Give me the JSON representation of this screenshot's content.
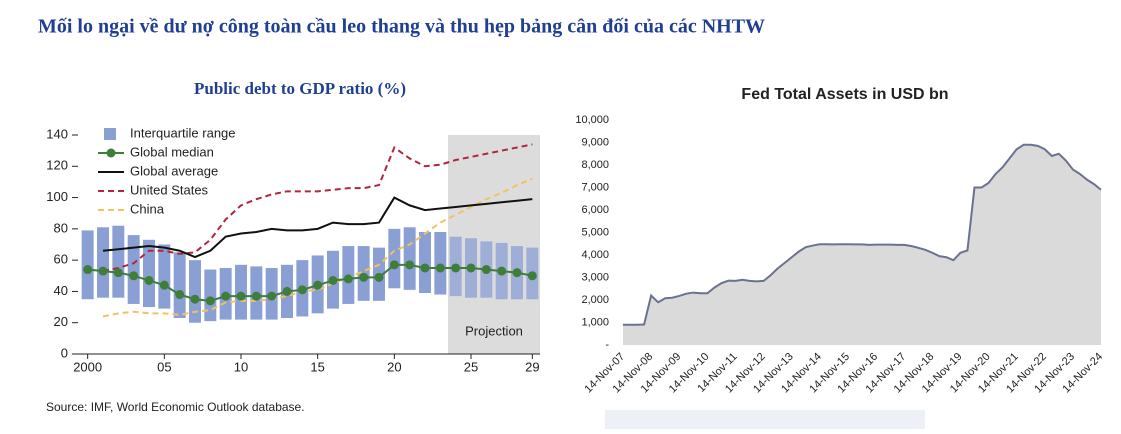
{
  "title": "Mối lo ngại về dư nợ công toàn cầu leo thang và thu hẹp bảng cân đối của các NHTW",
  "chart_data": [
    {
      "type": "line",
      "title": "Public debt to GDP ratio (%)",
      "source": "Source: IMF, World Economic Outlook database.",
      "x": [
        2000,
        2001,
        2002,
        2003,
        2004,
        2005,
        2006,
        2007,
        2008,
        2009,
        2010,
        2011,
        2012,
        2013,
        2014,
        2015,
        2016,
        2017,
        2018,
        2019,
        2020,
        2021,
        2022,
        2023,
        2024,
        2025,
        2026,
        2027,
        2028,
        2029
      ],
      "xlim": [
        1999.5,
        2029.5
      ],
      "xticks": [
        {
          "value": 2000,
          "label": "2000"
        },
        {
          "value": 2005,
          "label": "05"
        },
        {
          "value": 2010,
          "label": "10"
        },
        {
          "value": 2015,
          "label": "15"
        },
        {
          "value": 2020,
          "label": "20"
        },
        {
          "value": 2025,
          "label": "25"
        },
        {
          "value": 2029,
          "label": "29"
        }
      ],
      "ylim": [
        0,
        140
      ],
      "yticks": [
        0,
        20,
        40,
        60,
        80,
        100,
        120,
        140
      ],
      "projection": {
        "label": "Projection",
        "xlim": [
          2023.5,
          2029.5
        ],
        "color": "#dcdcdc"
      },
      "range": {
        "name": "Interquartile range",
        "color": "#8a9fd4",
        "low": [
          35,
          36,
          36,
          32,
          30,
          29,
          23,
          20,
          21,
          22,
          22,
          22,
          22,
          23,
          24,
          26,
          29,
          32,
          34,
          34,
          42,
          41,
          39,
          38,
          37,
          36,
          36,
          35,
          35,
          35
        ],
        "high": [
          79,
          81,
          82,
          76,
          73,
          70,
          65,
          60,
          54,
          55,
          57,
          56,
          55,
          57,
          60,
          63,
          66,
          69,
          69,
          68,
          80,
          81,
          78,
          78,
          75,
          74,
          72,
          71,
          69,
          68
        ]
      },
      "series": [
        {
          "name": "Global median",
          "color": "#3f7d3a",
          "markers": true,
          "dashed": false,
          "values": [
            54,
            53,
            52,
            50,
            47,
            44,
            38,
            35,
            34,
            37,
            37,
            37,
            37,
            40,
            41,
            44,
            47,
            48,
            49,
            49,
            57,
            57,
            55,
            55,
            55,
            55,
            54,
            53,
            52,
            50
          ]
        },
        {
          "name": "Global average",
          "color": "#111111",
          "markers": false,
          "dashed": false,
          "values": [
            null,
            66,
            67,
            68,
            69,
            68,
            66,
            62,
            66,
            75,
            77,
            78,
            80,
            79,
            79,
            80,
            84,
            83,
            83,
            84,
            100,
            95,
            92,
            93,
            94,
            95,
            96,
            97,
            98,
            99
          ]
        },
        {
          "name": "United States",
          "color": "#b3263a",
          "markers": false,
          "dashed": true,
          "values": [
            null,
            53,
            55,
            58,
            66,
            66,
            64,
            65,
            73,
            86,
            95,
            99,
            102,
            104,
            104,
            104,
            105,
            106,
            106,
            108,
            132,
            125,
            120,
            121,
            124,
            126,
            128,
            130,
            132,
            134
          ]
        },
        {
          "name": "China",
          "color": "#f2c25e",
          "markers": false,
          "dashed": true,
          "values": [
            null,
            24,
            26,
            27,
            26,
            26,
            25,
            27,
            28,
            33,
            34,
            34,
            35,
            37,
            40,
            41,
            45,
            49,
            53,
            57,
            66,
            70,
            77,
            84,
            89,
            94,
            99,
            103,
            108,
            112
          ]
        }
      ]
    },
    {
      "type": "area",
      "title": "Fed Total Assets in USD bn",
      "categories": [
        "14-Nov-07",
        null,
        null,
        null,
        "14-Nov-08",
        null,
        null,
        null,
        "14-Nov-09",
        null,
        null,
        null,
        "14-Nov-10",
        null,
        null,
        null,
        "14-Nov-11",
        null,
        null,
        null,
        "14-Nov-12",
        null,
        null,
        null,
        "14-Nov-13",
        null,
        null,
        null,
        "14-Nov-14",
        null,
        null,
        null,
        "14-Nov-15",
        null,
        null,
        null,
        "14-Nov-16",
        null,
        null,
        null,
        "14-Nov-17",
        null,
        null,
        null,
        "14-Nov-18",
        null,
        null,
        null,
        "14-Nov-19",
        null,
        null,
        null,
        "14-Nov-20",
        null,
        null,
        null,
        "14-Nov-21",
        null,
        null,
        null,
        "14-Nov-22",
        null,
        null,
        null,
        "14-Nov-23",
        null,
        null,
        null,
        "14-Nov-24"
      ],
      "values": [
        900,
        900,
        900,
        910,
        2200,
        1900,
        2080,
        2100,
        2180,
        2280,
        2330,
        2300,
        2300,
        2550,
        2750,
        2860,
        2850,
        2900,
        2850,
        2830,
        2850,
        3100,
        3400,
        3650,
        3900,
        4150,
        4350,
        4420,
        4480,
        4480,
        4470,
        4480,
        4480,
        4470,
        4470,
        4450,
        4460,
        4460,
        4460,
        4450,
        4450,
        4400,
        4320,
        4230,
        4100,
        3950,
        3900,
        3770,
        4100,
        4200,
        7000,
        7000,
        7200,
        7600,
        7900,
        8300,
        8700,
        8900,
        8900,
        8850,
        8700,
        8400,
        8500,
        8200,
        7800,
        7600,
        7350,
        7150,
        6900
      ],
      "color": "#6b7290",
      "fill": "#dadada",
      "ylim": [
        0,
        10000
      ],
      "yticks": [
        {
          "value": 0,
          "label": "-"
        },
        {
          "value": 1000,
          "label": "1,000"
        },
        {
          "value": 2000,
          "label": "2,000"
        },
        {
          "value": 3000,
          "label": "3,000"
        },
        {
          "value": 4000,
          "label": "4,000"
        },
        {
          "value": 5000,
          "label": "5,000"
        },
        {
          "value": 6000,
          "label": "6,000"
        },
        {
          "value": 7000,
          "label": "7,000"
        },
        {
          "value": 8000,
          "label": "8,000"
        },
        {
          "value": 9000,
          "label": "9,000"
        },
        {
          "value": 10000,
          "label": "10,000"
        }
      ]
    }
  ]
}
